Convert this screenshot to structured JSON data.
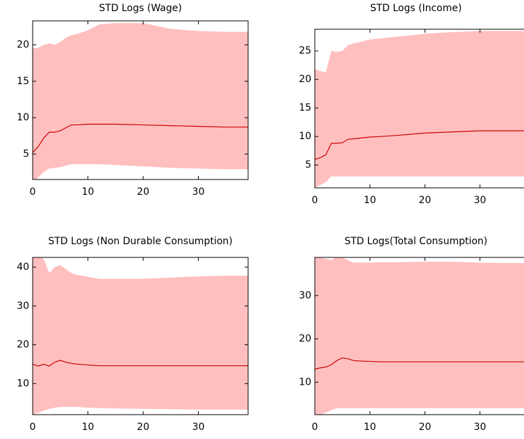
{
  "chart_data": [
    {
      "type": "line",
      "title": "STD Logs (Wage)",
      "x": [
        0,
        1,
        2,
        3,
        4,
        5,
        6,
        7,
        8,
        10,
        12,
        15,
        20,
        25,
        30,
        35,
        39
      ],
      "series": [
        {
          "color": "#cc0000",
          "band_color": "#ffbfbf",
          "values": [
            5.2,
            6,
            7.2,
            8,
            8,
            8.2,
            8.6,
            9,
            9,
            9.1,
            9.1,
            9.1,
            9,
            8.9,
            8.8,
            8.7,
            8.7
          ],
          "upper": [
            19.5,
            19.6,
            20,
            20.2,
            20,
            20.4,
            21,
            21.3,
            21.5,
            22,
            22.8,
            23,
            23,
            22.2,
            21.9,
            21.8,
            21.8
          ],
          "lower": [
            0.8,
            1.8,
            2.5,
            3,
            3.1,
            3.2,
            3.4,
            3.6,
            3.6,
            3.6,
            3.6,
            3.5,
            3.3,
            3.1,
            3,
            2.9,
            2.9
          ]
        }
      ],
      "xlim": [
        0,
        39
      ],
      "xticks": [
        0,
        10,
        20,
        30
      ],
      "ylim": [
        1.5,
        23.3
      ],
      "yticks": [
        5,
        10,
        15,
        20
      ]
    },
    {
      "type": "line",
      "title": "STD Logs (Income)",
      "x": [
        0,
        1,
        2,
        3,
        4,
        5,
        6,
        7,
        8,
        10,
        12,
        15,
        20,
        25,
        30,
        35,
        39
      ],
      "series": [
        {
          "color": "#cc0000",
          "band_color": "#ffbfbf",
          "values": [
            6,
            6.3,
            6.8,
            8.8,
            8.8,
            8.9,
            9.5,
            9.6,
            9.7,
            9.9,
            10,
            10.2,
            10.6,
            10.8,
            11,
            11,
            11
          ],
          "upper": [
            21.8,
            21.5,
            21.2,
            25,
            24.8,
            25,
            26,
            26.3,
            26.5,
            27,
            27.2,
            27.5,
            28,
            28.3,
            28.5,
            28.5,
            28.5
          ],
          "lower": [
            1,
            1.5,
            2,
            3,
            3,
            3,
            3,
            3,
            3,
            3,
            3,
            3,
            3,
            3,
            3,
            3,
            3
          ]
        }
      ],
      "xlim": [
        0,
        39
      ],
      "xticks": [
        0,
        10,
        20,
        30
      ],
      "ylim": [
        1,
        28.8
      ],
      "yticks": [
        5,
        10,
        15,
        20,
        25
      ]
    },
    {
      "type": "line",
      "title": "STD Logs (Non Durable Consumption)",
      "x": [
        0,
        1,
        2,
        3,
        4,
        5,
        6,
        7,
        8,
        10,
        12,
        15,
        20,
        25,
        30,
        35,
        39
      ],
      "series": [
        {
          "color": "#cc0000",
          "band_color": "#ffbfbf",
          "values": [
            15,
            14.5,
            15,
            14.5,
            15.5,
            16,
            15.5,
            15.2,
            15,
            14.8,
            14.6,
            14.6,
            14.6,
            14.6,
            14.6,
            14.6,
            14.6
          ],
          "upper": [
            44,
            43,
            42,
            38.5,
            40,
            40.5,
            39.5,
            38.5,
            38,
            37.5,
            37,
            37,
            37,
            37.3,
            37.6,
            37.8,
            37.8
          ],
          "lower": [
            2,
            2.5,
            3,
            3.5,
            3.8,
            4,
            4,
            4,
            4,
            3.8,
            3.7,
            3.6,
            3.5,
            3.4,
            3.3,
            3.3,
            3.3
          ]
        }
      ],
      "xlim": [
        0,
        39
      ],
      "xticks": [
        0,
        10,
        20,
        30
      ],
      "ylim": [
        2,
        42.5
      ],
      "yticks": [
        10,
        20,
        30,
        40
      ]
    },
    {
      "type": "line",
      "title": "STD Logs(Total Consumption)",
      "x": [
        0,
        1,
        2,
        3,
        4,
        5,
        6,
        7,
        8,
        10,
        12,
        15,
        20,
        25,
        30,
        35,
        39
      ],
      "series": [
        {
          "color": "#cc0000",
          "band_color": "#ffbfbf",
          "values": [
            13,
            13.3,
            13.5,
            14,
            15,
            15.6,
            15.4,
            15,
            14.9,
            14.8,
            14.7,
            14.7,
            14.7,
            14.7,
            14.7,
            14.7,
            14.7
          ],
          "upper": [
            39,
            38.8,
            38.5,
            38.2,
            39,
            38.7,
            38.2,
            37.6,
            37.6,
            37.6,
            37.7,
            37.7,
            37.8,
            37.8,
            37.6,
            37.5,
            37.5
          ],
          "lower": [
            2,
            2.5,
            3,
            3.5,
            4,
            4,
            4,
            4,
            4,
            4,
            4,
            4,
            4,
            4,
            4,
            4,
            4
          ]
        }
      ],
      "xlim": [
        0,
        39
      ],
      "xticks": [
        0,
        10,
        20,
        30
      ],
      "ylim": [
        2.5,
        38.8
      ],
      "yticks": [
        10,
        20,
        30
      ]
    }
  ]
}
